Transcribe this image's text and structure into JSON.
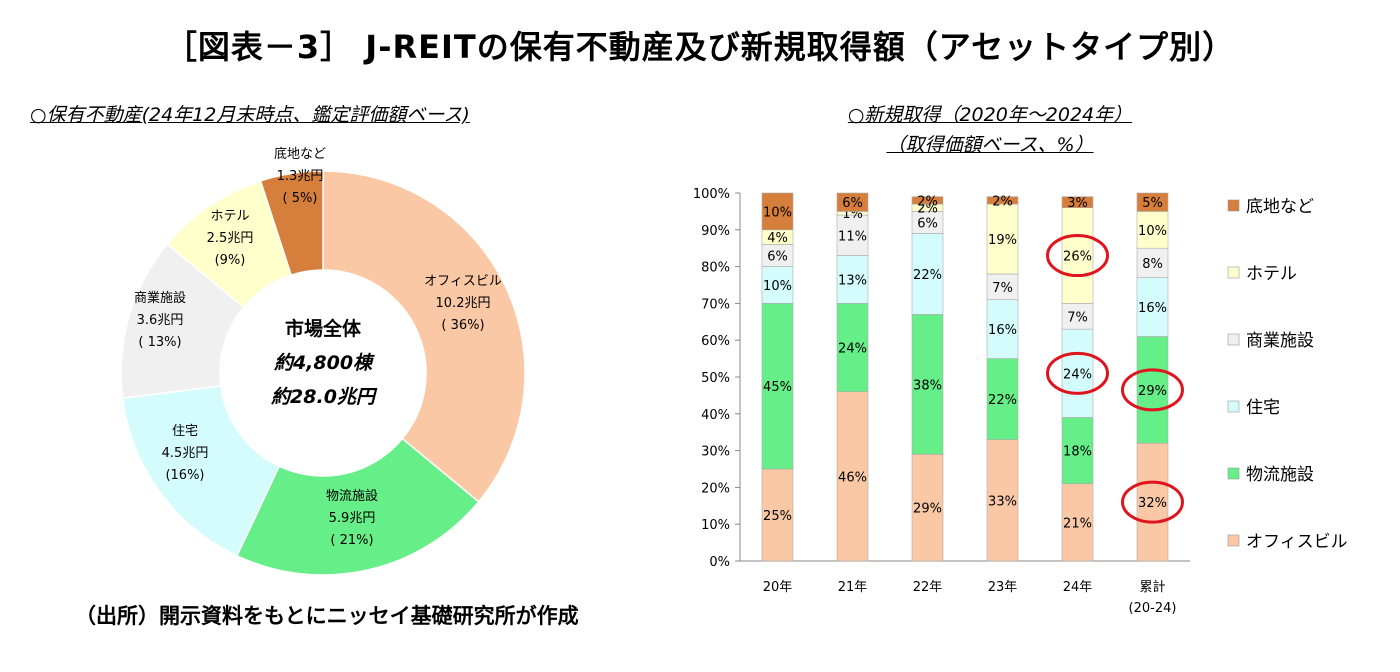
{
  "title": "［図表－3］ J-REITの保有不動産及び新規取得額（アセットタイプ別）",
  "source_note": "（出所）開示資料をもとにニッセイ基礎研究所が作成",
  "colors": {
    "office": "#fac8a5",
    "logistics": "#66ee88",
    "residential": "#d4fcfc",
    "retail": "#f0f0f0",
    "hotel": "#ffffcc",
    "land": "#d67f3c",
    "highlight": "#e0141e"
  },
  "chart_data": [
    {
      "type": "pie",
      "subtitle": "○保有不動産(24年12月末時点、鑑定評価額ベース)",
      "center_text": [
        "市場全体",
        "約4,800棟",
        "約28.0兆円"
      ],
      "slices": [
        {
          "label": "オフィスビル",
          "amount": "10.2兆円",
          "pct_label": "( 36%)",
          "value": 36,
          "color_key": "office"
        },
        {
          "label": "物流施設",
          "amount": "5.9兆円",
          "pct_label": "( 21%)",
          "value": 21,
          "color_key": "logistics"
        },
        {
          "label": "住宅",
          "amount": "4.5兆円",
          "pct_label": "(16%)",
          "value": 16,
          "color_key": "residential"
        },
        {
          "label": "商業施設",
          "amount": "3.6兆円",
          "pct_label": "( 13%)",
          "value": 13,
          "color_key": "retail"
        },
        {
          "label": "ホテル",
          "amount": "2.5兆円",
          "pct_label": "(9%)",
          "value": 9,
          "color_key": "hotel"
        },
        {
          "label": "底地など",
          "amount": "1.3兆円",
          "pct_label": "( 5%)",
          "value": 5,
          "color_key": "land"
        }
      ]
    },
    {
      "type": "bar",
      "stacked": true,
      "subtitle_lines": [
        "○新規取得（2020年～2024年）",
        "（取得価額ベース、%）"
      ],
      "categories": [
        "20年",
        "21年",
        "22年",
        "23年",
        "24年",
        "累計"
      ],
      "category_sub": [
        "",
        "",
        "",
        "",
        "",
        "(20-24)"
      ],
      "ylim": [
        0,
        100
      ],
      "yticks": [
        "0%",
        "10%",
        "20%",
        "30%",
        "40%",
        "50%",
        "60%",
        "70%",
        "80%",
        "90%",
        "100%"
      ],
      "series": [
        {
          "name": "オフィスビル",
          "color_key": "office",
          "values": [
            25,
            46,
            29,
            33,
            21,
            32
          ],
          "labels": [
            "25%",
            "46%",
            "29%",
            "33%",
            "21%",
            "32%"
          ]
        },
        {
          "name": "物流施設",
          "color_key": "logistics",
          "values": [
            45,
            24,
            38,
            22,
            18,
            29
          ],
          "labels": [
            "45%",
            "24%",
            "38%",
            "22%",
            "18%",
            "29%"
          ]
        },
        {
          "name": "住宅",
          "color_key": "residential",
          "values": [
            10,
            13,
            22,
            16,
            24,
            16
          ],
          "labels": [
            "10%",
            "13%",
            "22%",
            "16%",
            "24%",
            "16%"
          ]
        },
        {
          "name": "商業施設",
          "color_key": "retail",
          "values": [
            6,
            11,
            6,
            7,
            7,
            8
          ],
          "labels": [
            "6%",
            "11%",
            "6%",
            "7%",
            "7%",
            "8%"
          ]
        },
        {
          "name": "ホテル",
          "color_key": "hotel",
          "values": [
            4,
            1,
            2,
            19,
            26,
            10
          ],
          "labels": [
            "4%",
            "1%",
            "2%",
            "19%",
            "26%",
            "10%"
          ]
        },
        {
          "name": "底地など",
          "color_key": "land",
          "values": [
            10,
            6,
            2,
            2,
            3,
            5
          ],
          "labels": [
            "10%",
            "6%",
            "2%",
            "2%",
            "3%",
            "5%"
          ]
        }
      ],
      "highlighted": [
        {
          "category": 4,
          "series": 4
        },
        {
          "category": 4,
          "series": 2
        },
        {
          "category": 5,
          "series": 1
        },
        {
          "category": 5,
          "series": 0
        }
      ],
      "legend_order": [
        "底地など",
        "ホテル",
        "商業施設",
        "住宅",
        "物流施設",
        "オフィスビル"
      ],
      "legend_position": "right"
    }
  ]
}
